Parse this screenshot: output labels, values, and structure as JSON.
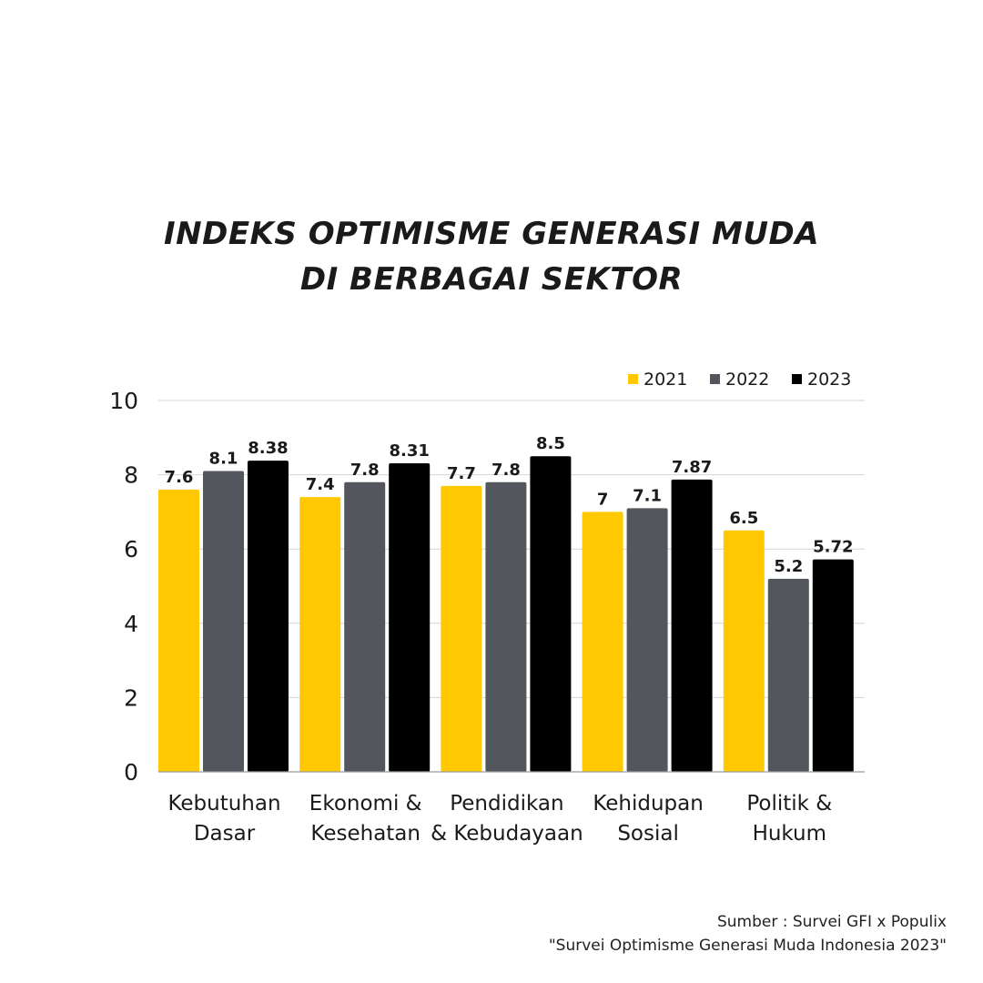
{
  "title": {
    "line1": "INDEKS OPTIMISME GENERASI MUDA",
    "line2": "DI BERBAGAI SEKTOR"
  },
  "chart_data": {
    "type": "bar",
    "categories": [
      [
        "Kebutuhan",
        "Dasar"
      ],
      [
        "Ekonomi &",
        "Kesehatan"
      ],
      [
        "Pendidikan",
        "& Kebudayaan"
      ],
      [
        "Kehidupan",
        "Sosial"
      ],
      [
        "Politik &",
        "Hukum"
      ]
    ],
    "series": [
      {
        "name": "2021",
        "color": "#ffc800",
        "values": [
          7.6,
          7.4,
          7.7,
          7,
          6.5
        ],
        "labels": [
          "7.6",
          "7.4",
          "7.7",
          "7",
          "6.5"
        ]
      },
      {
        "name": "2022",
        "color": "#53565c",
        "values": [
          8.1,
          7.8,
          7.8,
          7.1,
          5.2
        ],
        "labels": [
          "8.1",
          "7.8",
          "7.8",
          "7.1",
          "5.2"
        ]
      },
      {
        "name": "2023",
        "color": "#000000",
        "values": [
          8.38,
          8.31,
          8.5,
          7.87,
          5.72
        ],
        "labels": [
          "8.38",
          "8.31",
          "8.5",
          "7.87",
          "5.72"
        ]
      }
    ],
    "yticks": [
      "0",
      "2",
      "4",
      "6",
      "8",
      "10"
    ],
    "ylim": [
      0,
      10
    ],
    "grid": true,
    "legend": "top-right"
  },
  "source": {
    "line1": "Sumber : Survei GFI x Populix",
    "line2": "\"Survei Optimisme Generasi Muda Indonesia 2023\""
  }
}
